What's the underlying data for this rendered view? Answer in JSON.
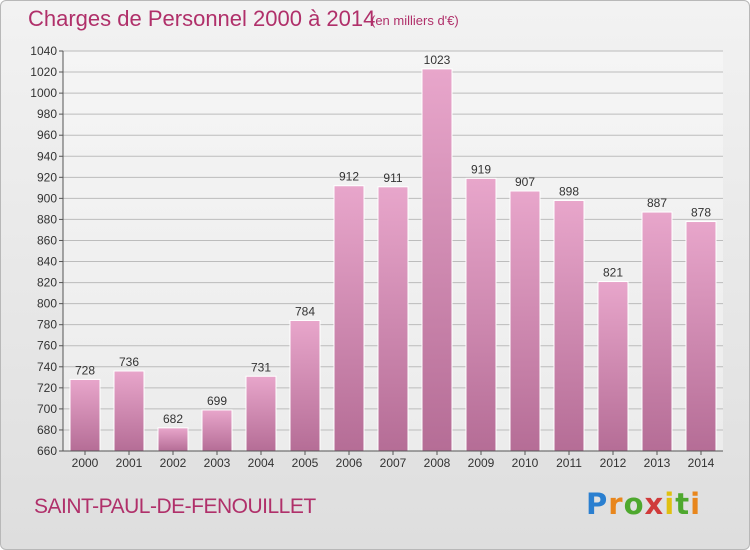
{
  "header": {
    "title": "Charges de Personnel 2000 à 2014",
    "subtitle": "(en milliers d'€)"
  },
  "footer": {
    "commune": "SAINT-PAUL-DE-FENOUILLET",
    "logo_text": "Proxiti"
  },
  "colors": {
    "title": "#b0306a",
    "bar_top": "#e8a6cb",
    "bar_bottom": "#b56d96",
    "grid": "#bcbcbc"
  },
  "chart_data": {
    "type": "bar",
    "categories": [
      "2000",
      "2001",
      "2002",
      "2003",
      "2004",
      "2005",
      "2006",
      "2007",
      "2008",
      "2009",
      "2010",
      "2011",
      "2012",
      "2013",
      "2014"
    ],
    "values": [
      728,
      736,
      682,
      699,
      731,
      784,
      912,
      911,
      1023,
      919,
      907,
      898,
      821,
      887,
      878
    ],
    "ylim": [
      660,
      1040
    ],
    "yticks": [
      660,
      680,
      700,
      720,
      740,
      760,
      780,
      800,
      820,
      840,
      860,
      880,
      900,
      920,
      940,
      960,
      980,
      1000,
      1020,
      1040
    ],
    "grid": true,
    "legend": "none",
    "data_labels": true
  }
}
